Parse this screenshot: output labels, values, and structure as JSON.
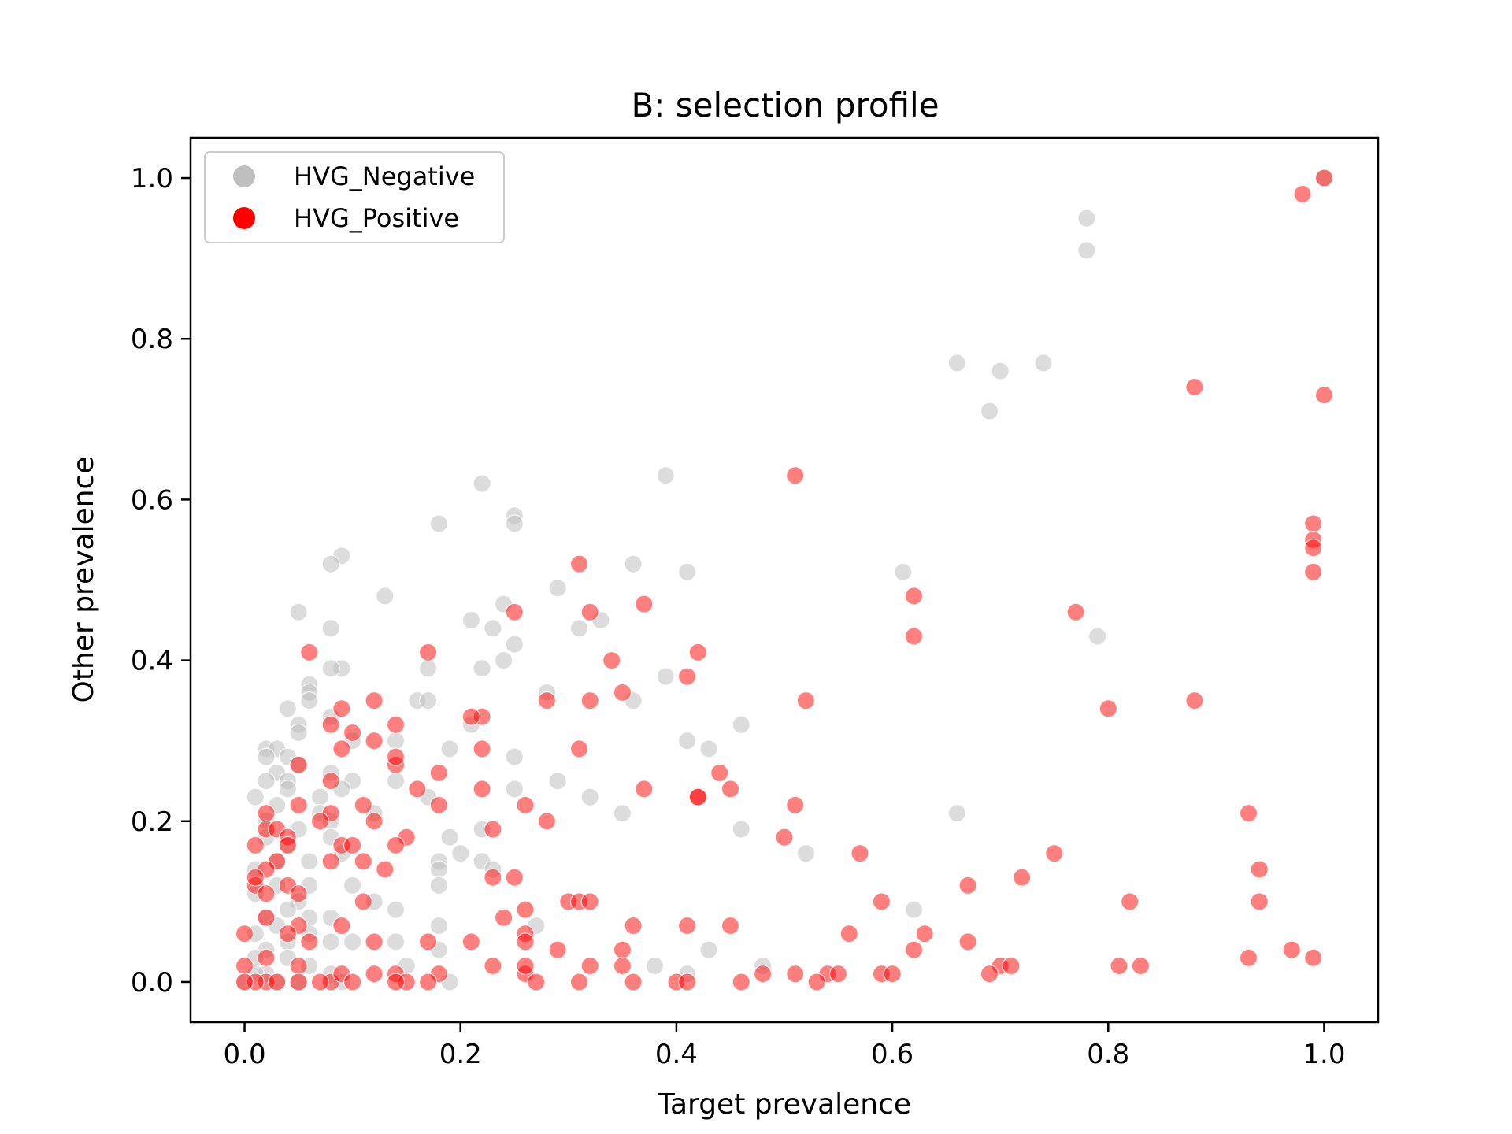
{
  "chart_data": {
    "type": "scatter",
    "title": "B: selection profile",
    "xlabel": "Target prevalence",
    "ylabel": "Other prevalence",
    "xlim": [
      -0.05,
      1.05
    ],
    "ylim": [
      -0.05,
      1.05
    ],
    "xticks": [
      0.0,
      0.2,
      0.4,
      0.6,
      0.8,
      1.0
    ],
    "xtick_labels": [
      "0.0",
      "0.2",
      "0.4",
      "0.6",
      "0.8",
      "1.0"
    ],
    "yticks": [
      0.0,
      0.2,
      0.4,
      0.6,
      0.8,
      1.0
    ],
    "ytick_labels": [
      "0.0",
      "0.2",
      "0.4",
      "0.6",
      "0.8",
      "1.0"
    ],
    "grid": false,
    "legend_position": "top-left",
    "series": [
      {
        "name": "HVG_Negative",
        "color": "#bfbfbf",
        "points": [
          [
            0.78,
            0.95
          ],
          [
            0.78,
            0.91
          ],
          [
            1.0,
            1.0
          ],
          [
            0.66,
            0.77
          ],
          [
            0.7,
            0.76
          ],
          [
            0.74,
            0.77
          ],
          [
            0.69,
            0.71
          ],
          [
            0.22,
            0.62
          ],
          [
            0.39,
            0.63
          ],
          [
            0.25,
            0.58
          ],
          [
            0.25,
            0.57
          ],
          [
            0.18,
            0.57
          ],
          [
            0.09,
            0.53
          ],
          [
            0.08,
            0.52
          ],
          [
            0.36,
            0.52
          ],
          [
            0.41,
            0.51
          ],
          [
            0.61,
            0.51
          ],
          [
            0.29,
            0.49
          ],
          [
            0.13,
            0.48
          ],
          [
            0.24,
            0.47
          ],
          [
            0.05,
            0.46
          ],
          [
            0.33,
            0.45
          ],
          [
            0.31,
            0.44
          ],
          [
            0.23,
            0.44
          ],
          [
            0.21,
            0.45
          ],
          [
            0.79,
            0.43
          ],
          [
            0.08,
            0.44
          ],
          [
            0.25,
            0.42
          ],
          [
            0.24,
            0.4
          ],
          [
            0.22,
            0.39
          ],
          [
            0.17,
            0.39
          ],
          [
            0.09,
            0.39
          ],
          [
            0.08,
            0.39
          ],
          [
            0.06,
            0.37
          ],
          [
            0.06,
            0.36
          ],
          [
            0.39,
            0.38
          ],
          [
            0.16,
            0.35
          ],
          [
            0.17,
            0.35
          ],
          [
            0.06,
            0.35
          ],
          [
            0.28,
            0.36
          ],
          [
            0.36,
            0.35
          ],
          [
            0.46,
            0.32
          ],
          [
            0.04,
            0.34
          ],
          [
            0.21,
            0.32
          ],
          [
            0.05,
            0.32
          ],
          [
            0.08,
            0.33
          ],
          [
            0.05,
            0.31
          ],
          [
            0.1,
            0.3
          ],
          [
            0.14,
            0.3
          ],
          [
            0.41,
            0.3
          ],
          [
            0.43,
            0.29
          ],
          [
            0.02,
            0.29
          ],
          [
            0.03,
            0.29
          ],
          [
            0.02,
            0.28
          ],
          [
            0.04,
            0.28
          ],
          [
            0.05,
            0.27
          ],
          [
            0.19,
            0.29
          ],
          [
            0.25,
            0.28
          ],
          [
            0.03,
            0.26
          ],
          [
            0.04,
            0.25
          ],
          [
            0.02,
            0.25
          ],
          [
            0.08,
            0.26
          ],
          [
            0.1,
            0.25
          ],
          [
            0.29,
            0.25
          ],
          [
            0.04,
            0.24
          ],
          [
            0.01,
            0.23
          ],
          [
            0.03,
            0.22
          ],
          [
            0.07,
            0.23
          ],
          [
            0.09,
            0.24
          ],
          [
            0.14,
            0.25
          ],
          [
            0.25,
            0.24
          ],
          [
            0.32,
            0.23
          ],
          [
            0.17,
            0.23
          ],
          [
            0.12,
            0.21
          ],
          [
            0.07,
            0.21
          ],
          [
            0.08,
            0.2
          ],
          [
            0.05,
            0.19
          ],
          [
            0.02,
            0.2
          ],
          [
            0.35,
            0.21
          ],
          [
            0.66,
            0.21
          ],
          [
            0.46,
            0.19
          ],
          [
            0.22,
            0.19
          ],
          [
            0.19,
            0.18
          ],
          [
            0.02,
            0.18
          ],
          [
            0.04,
            0.17
          ],
          [
            0.08,
            0.18
          ],
          [
            0.09,
            0.16
          ],
          [
            0.2,
            0.16
          ],
          [
            0.52,
            0.16
          ],
          [
            0.22,
            0.15
          ],
          [
            0.18,
            0.15
          ],
          [
            0.06,
            0.15
          ],
          [
            0.03,
            0.15
          ],
          [
            0.01,
            0.14
          ],
          [
            0.18,
            0.14
          ],
          [
            0.23,
            0.14
          ],
          [
            0.18,
            0.12
          ],
          [
            0.1,
            0.12
          ],
          [
            0.06,
            0.12
          ],
          [
            0.03,
            0.12
          ],
          [
            0.01,
            0.11
          ],
          [
            0.05,
            0.1
          ],
          [
            0.12,
            0.1
          ],
          [
            0.14,
            0.09
          ],
          [
            0.04,
            0.09
          ],
          [
            0.02,
            0.08
          ],
          [
            0.06,
            0.08
          ],
          [
            0.08,
            0.08
          ],
          [
            0.62,
            0.09
          ],
          [
            0.27,
            0.07
          ],
          [
            0.18,
            0.07
          ],
          [
            0.03,
            0.07
          ],
          [
            0.01,
            0.06
          ],
          [
            0.06,
            0.06
          ],
          [
            0.08,
            0.05
          ],
          [
            0.14,
            0.05
          ],
          [
            0.1,
            0.05
          ],
          [
            0.04,
            0.05
          ],
          [
            0.02,
            0.04
          ],
          [
            0.18,
            0.04
          ],
          [
            0.43,
            0.04
          ],
          [
            0.01,
            0.03
          ],
          [
            0.04,
            0.03
          ],
          [
            0.06,
            0.02
          ],
          [
            0.38,
            0.02
          ],
          [
            0.48,
            0.02
          ],
          [
            0.15,
            0.02
          ],
          [
            0.02,
            0.01
          ],
          [
            0.08,
            0.01
          ],
          [
            0.41,
            0.01
          ],
          [
            0.03,
            0.0
          ],
          [
            0.0,
            0.0
          ],
          [
            0.05,
            0.0
          ],
          [
            0.09,
            0.0
          ],
          [
            0.19,
            0.0
          ],
          [
            0.01,
            0.01
          ]
        ]
      },
      {
        "name": "HVG_Positive",
        "color": "#ff0000",
        "points": [
          [
            1.0,
            1.0
          ],
          [
            0.98,
            0.98
          ],
          [
            0.88,
            0.74
          ],
          [
            1.0,
            0.73
          ],
          [
            0.51,
            0.63
          ],
          [
            0.99,
            0.57
          ],
          [
            0.99,
            0.55
          ],
          [
            0.99,
            0.54
          ],
          [
            0.99,
            0.51
          ],
          [
            0.31,
            0.52
          ],
          [
            0.62,
            0.48
          ],
          [
            0.37,
            0.47
          ],
          [
            0.25,
            0.46
          ],
          [
            0.32,
            0.46
          ],
          [
            0.77,
            0.46
          ],
          [
            0.62,
            0.43
          ],
          [
            0.06,
            0.41
          ],
          [
            0.17,
            0.41
          ],
          [
            0.42,
            0.41
          ],
          [
            0.34,
            0.4
          ],
          [
            0.41,
            0.38
          ],
          [
            0.35,
            0.36
          ],
          [
            0.32,
            0.35
          ],
          [
            0.12,
            0.35
          ],
          [
            0.28,
            0.35
          ],
          [
            0.52,
            0.35
          ],
          [
            0.88,
            0.35
          ],
          [
            0.09,
            0.34
          ],
          [
            0.8,
            0.34
          ],
          [
            0.22,
            0.33
          ],
          [
            0.21,
            0.33
          ],
          [
            0.14,
            0.32
          ],
          [
            0.08,
            0.32
          ],
          [
            0.1,
            0.31
          ],
          [
            0.12,
            0.3
          ],
          [
            0.09,
            0.29
          ],
          [
            0.22,
            0.29
          ],
          [
            0.31,
            0.29
          ],
          [
            0.05,
            0.27
          ],
          [
            0.14,
            0.27
          ],
          [
            0.14,
            0.28
          ],
          [
            0.18,
            0.26
          ],
          [
            0.44,
            0.26
          ],
          [
            0.08,
            0.25
          ],
          [
            0.16,
            0.24
          ],
          [
            0.22,
            0.24
          ],
          [
            0.37,
            0.24
          ],
          [
            0.45,
            0.24
          ],
          [
            0.42,
            0.23
          ],
          [
            0.42,
            0.23
          ],
          [
            0.26,
            0.22
          ],
          [
            0.51,
            0.22
          ],
          [
            0.05,
            0.22
          ],
          [
            0.11,
            0.22
          ],
          [
            0.18,
            0.22
          ],
          [
            0.02,
            0.21
          ],
          [
            0.08,
            0.21
          ],
          [
            0.93,
            0.21
          ],
          [
            0.28,
            0.2
          ],
          [
            0.07,
            0.2
          ],
          [
            0.12,
            0.2
          ],
          [
            0.02,
            0.19
          ],
          [
            0.03,
            0.19
          ],
          [
            0.04,
            0.18
          ],
          [
            0.15,
            0.18
          ],
          [
            0.23,
            0.19
          ],
          [
            0.5,
            0.18
          ],
          [
            0.09,
            0.17
          ],
          [
            0.1,
            0.17
          ],
          [
            0.04,
            0.17
          ],
          [
            0.01,
            0.17
          ],
          [
            0.14,
            0.17
          ],
          [
            0.57,
            0.16
          ],
          [
            0.75,
            0.16
          ],
          [
            0.03,
            0.15
          ],
          [
            0.08,
            0.15
          ],
          [
            0.11,
            0.15
          ],
          [
            0.02,
            0.14
          ],
          [
            0.13,
            0.14
          ],
          [
            0.94,
            0.14
          ],
          [
            0.01,
            0.12
          ],
          [
            0.01,
            0.13
          ],
          [
            0.25,
            0.13
          ],
          [
            0.23,
            0.13
          ],
          [
            0.72,
            0.13
          ],
          [
            0.04,
            0.12
          ],
          [
            0.67,
            0.12
          ],
          [
            0.02,
            0.11
          ],
          [
            0.05,
            0.11
          ],
          [
            0.11,
            0.1
          ],
          [
            0.3,
            0.1
          ],
          [
            0.31,
            0.1
          ],
          [
            0.32,
            0.1
          ],
          [
            0.59,
            0.1
          ],
          [
            0.82,
            0.1
          ],
          [
            0.94,
            0.1
          ],
          [
            0.26,
            0.09
          ],
          [
            0.02,
            0.08
          ],
          [
            0.24,
            0.08
          ],
          [
            0.05,
            0.07
          ],
          [
            0.09,
            0.07
          ],
          [
            0.36,
            0.07
          ],
          [
            0.41,
            0.07
          ],
          [
            0.45,
            0.07
          ],
          [
            0.26,
            0.06
          ],
          [
            0.56,
            0.06
          ],
          [
            0.63,
            0.06
          ],
          [
            0.0,
            0.06
          ],
          [
            0.04,
            0.06
          ],
          [
            0.06,
            0.05
          ],
          [
            0.12,
            0.05
          ],
          [
            0.17,
            0.05
          ],
          [
            0.21,
            0.05
          ],
          [
            0.26,
            0.05
          ],
          [
            0.67,
            0.05
          ],
          [
            0.29,
            0.04
          ],
          [
            0.35,
            0.04
          ],
          [
            0.02,
            0.03
          ],
          [
            0.62,
            0.04
          ],
          [
            0.93,
            0.03
          ],
          [
            0.97,
            0.04
          ],
          [
            0.99,
            0.03
          ],
          [
            0.35,
            0.02
          ],
          [
            0.0,
            0.02
          ],
          [
            0.05,
            0.02
          ],
          [
            0.23,
            0.02
          ],
          [
            0.32,
            0.02
          ],
          [
            0.54,
            0.01
          ],
          [
            0.55,
            0.01
          ],
          [
            0.51,
            0.01
          ],
          [
            0.48,
            0.01
          ],
          [
            0.7,
            0.02
          ],
          [
            0.71,
            0.02
          ],
          [
            0.81,
            0.02
          ],
          [
            0.83,
            0.02
          ],
          [
            0.59,
            0.01
          ],
          [
            0.14,
            0.01
          ],
          [
            0.18,
            0.01
          ],
          [
            0.26,
            0.01
          ],
          [
            0.26,
            0.02
          ],
          [
            0.15,
            0.0
          ],
          [
            0.12,
            0.01
          ],
          [
            0.08,
            0.0
          ],
          [
            0.09,
            0.01
          ],
          [
            0.07,
            0.0
          ],
          [
            0.02,
            0.0
          ],
          [
            0.01,
            0.0
          ],
          [
            0.03,
            0.0
          ],
          [
            0.0,
            0.0
          ],
          [
            0.27,
            0.0
          ],
          [
            0.31,
            0.0
          ],
          [
            0.36,
            0.0
          ],
          [
            0.4,
            0.0
          ],
          [
            0.41,
            0.0
          ],
          [
            0.46,
            0.0
          ],
          [
            0.53,
            0.0
          ],
          [
            0.6,
            0.01
          ],
          [
            0.69,
            0.01
          ],
          [
            0.14,
            0.0
          ],
          [
            0.17,
            0.0
          ],
          [
            0.1,
            0.0
          ],
          [
            0.05,
            0.0
          ]
        ]
      }
    ]
  }
}
